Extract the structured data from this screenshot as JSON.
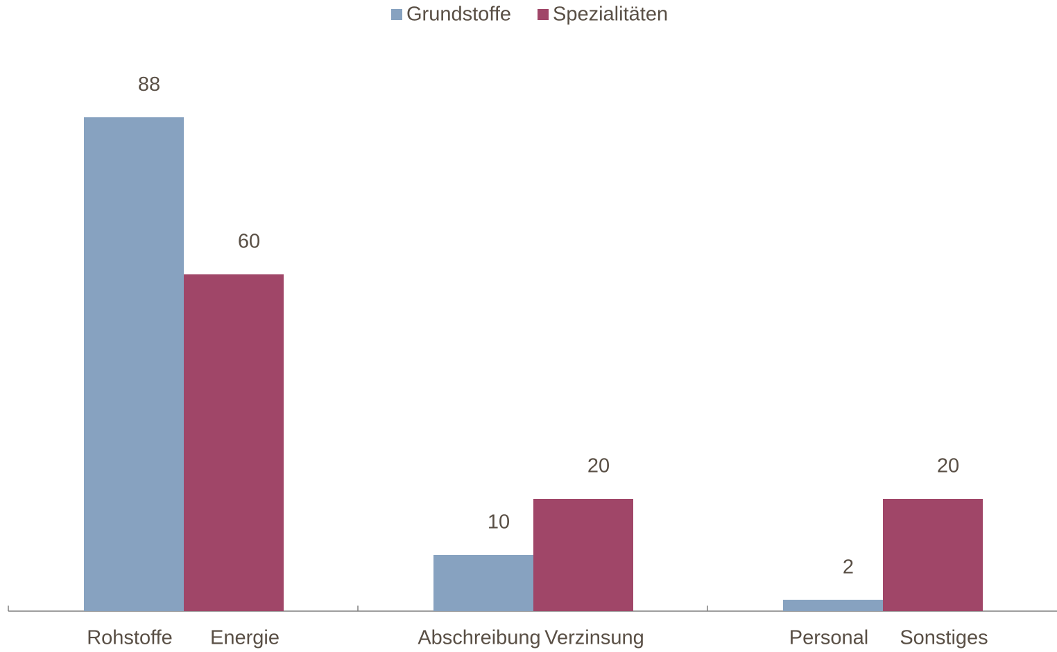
{
  "chart_data": {
    "type": "bar",
    "categories": [
      [
        "Rohstoffe",
        "Energie"
      ],
      [
        "Abschreibung",
        "Verzinsung"
      ],
      [
        "Personal",
        "Sonstiges"
      ]
    ],
    "series": [
      {
        "name": "Grundstoffe",
        "color": "#87a2c0",
        "values": [
          88,
          10,
          2
        ]
      },
      {
        "name": "Spezialitäten",
        "color": "#a04668",
        "values": [
          60,
          20,
          20
        ]
      }
    ],
    "ylim": [
      0,
      100
    ],
    "legend": "top"
  }
}
